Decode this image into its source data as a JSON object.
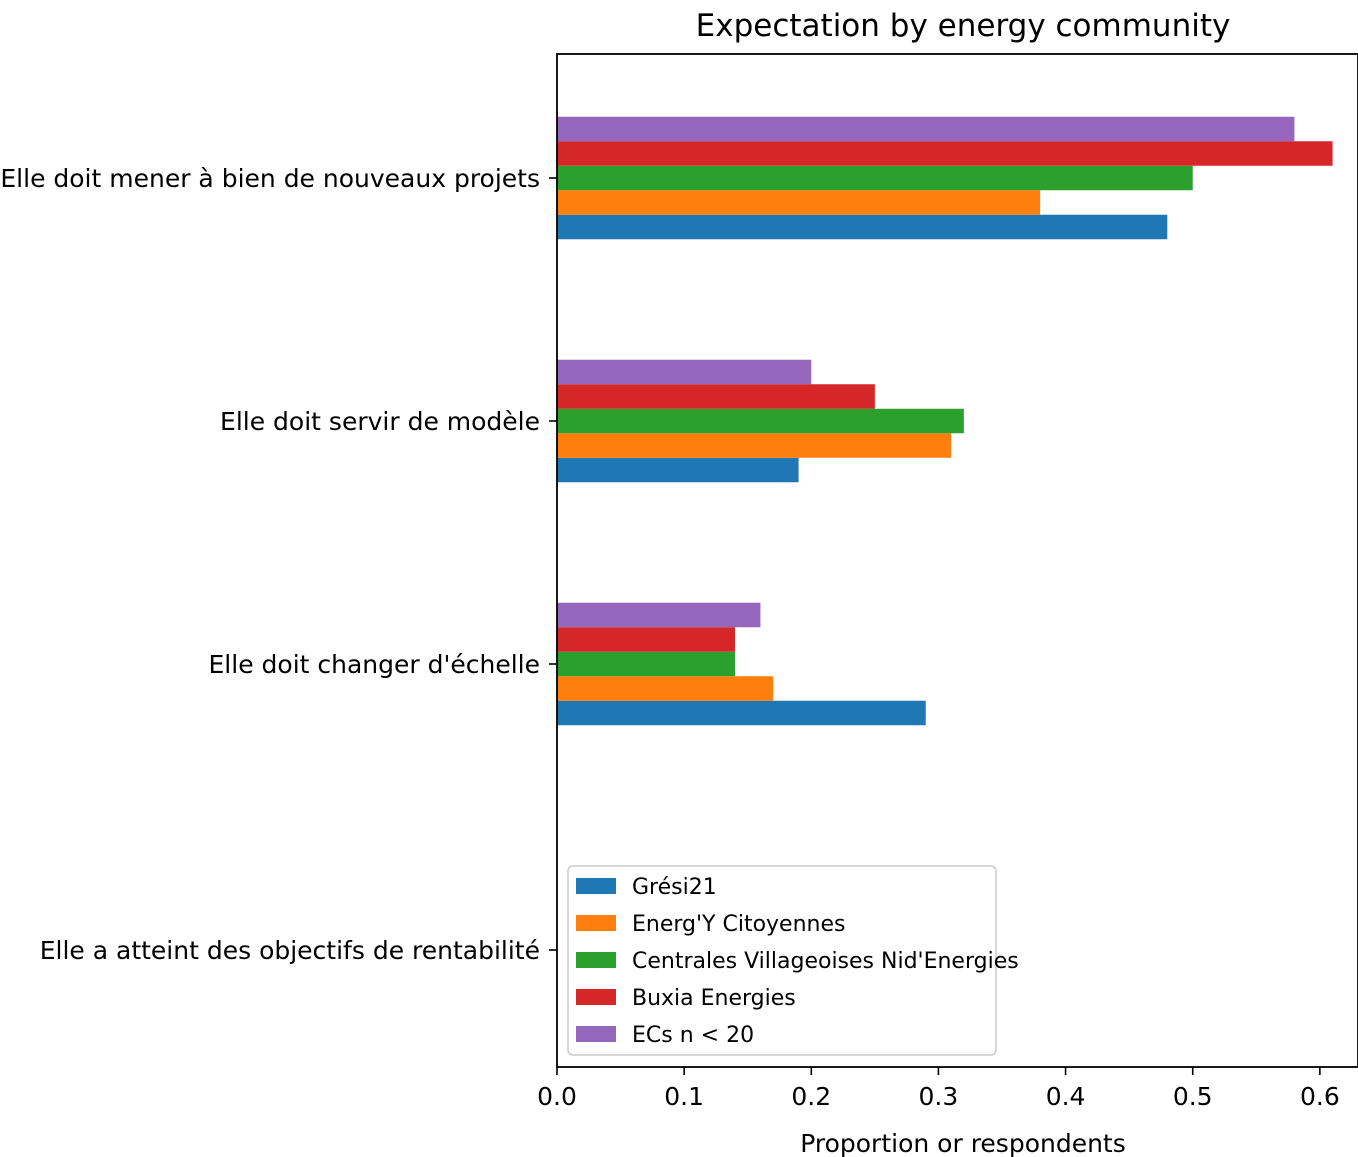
{
  "chart_data": {
    "type": "bar",
    "orientation": "horizontal",
    "title": "Expectation by energy community",
    "xlabel": "Proportion or respondents",
    "ylabel": "",
    "xlim": [
      0,
      0.63
    ],
    "xticks": [
      "0.0",
      "0.1",
      "0.2",
      "0.3",
      "0.4",
      "0.5",
      "0.6"
    ],
    "categories": [
      "Elle doit mener à bien de nouveaux projets",
      "Elle doit servir de modèle",
      "Elle doit changer d'échelle",
      "Elle a atteint des objectifs de rentabilité"
    ],
    "series": [
      {
        "name": "Grési21",
        "color": "#1f77b4",
        "values": [
          0.48,
          0.19,
          0.29,
          0
        ]
      },
      {
        "name": "Energ'Y Citoyennes",
        "color": "#ff7f0e",
        "values": [
          0.38,
          0.31,
          0.17,
          0
        ]
      },
      {
        "name": "Centrales Villageoises Nid'Energies",
        "color": "#2ca02c",
        "values": [
          0.5,
          0.32,
          0.14,
          0
        ]
      },
      {
        "name": "Buxia Energies",
        "color": "#d62728",
        "values": [
          0.61,
          0.25,
          0.14,
          0
        ]
      },
      {
        "name": "ECs n < 20",
        "color": "#9467bd",
        "values": [
          0.58,
          0.2,
          0.16,
          0
        ]
      }
    ],
    "grid": false,
    "legend_position": "lower-left"
  }
}
